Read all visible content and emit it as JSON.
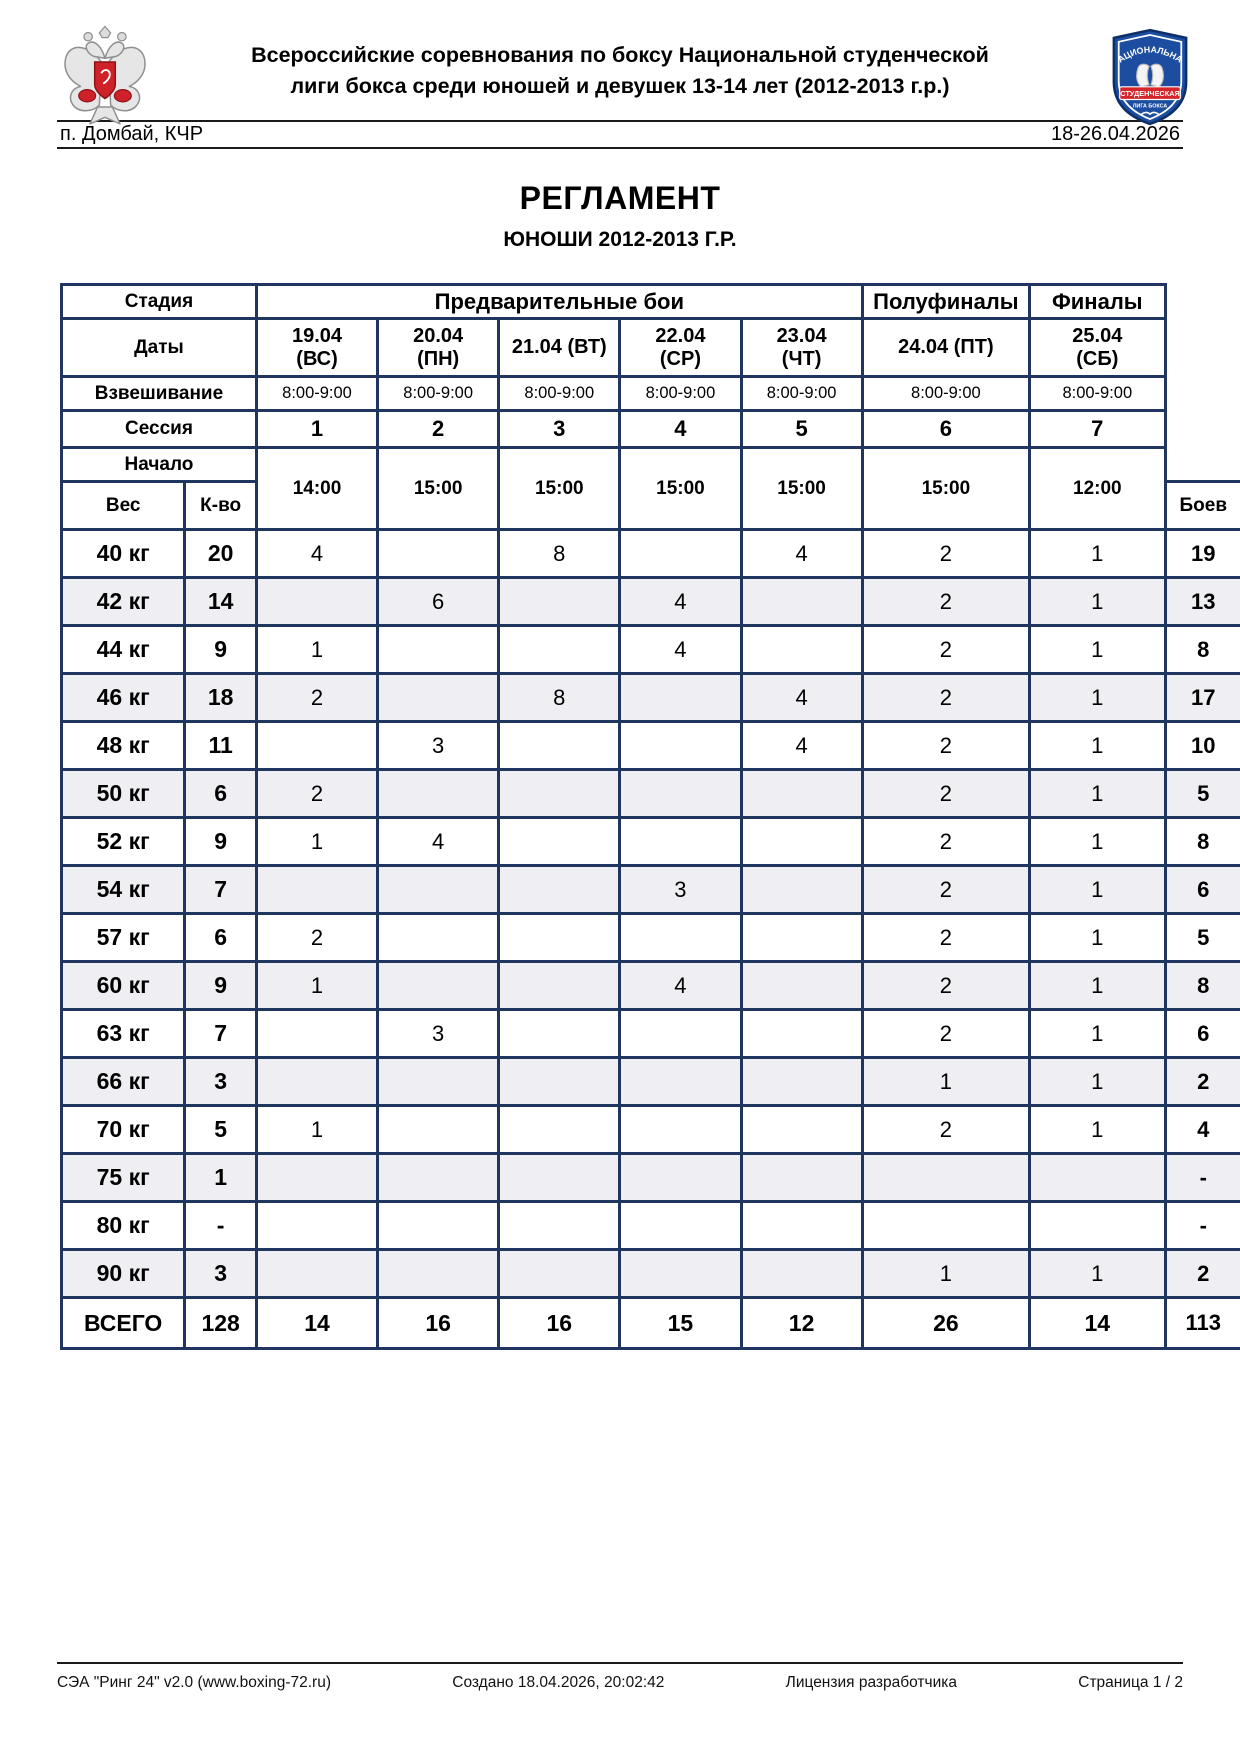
{
  "header": {
    "title_line1": "Всероссийские соревнования по боксу Национальной студенческой",
    "title_line2": "лиги бокса среди юношей и девушек 13-14 лет (2012-2013 г.р.)",
    "location": "п. Домбай, КЧР",
    "dates": "18-26.04.2026",
    "left_logo": "russia-sport-eagle-emblem",
    "right_logo": {
      "top_text": "НАЦИОНАЛЬНАЯ",
      "banner_text": "СТУДЕНЧЕСКАЯ",
      "bottom_text": "ЛИГА БОКСА"
    },
    "colors": {
      "table_border": "#203560",
      "alt_row": "#efeff3",
      "shield_blue": "#1c4da1",
      "banner_red": "#d6262b"
    }
  },
  "main": {
    "title": "РЕГЛАМЕНТ",
    "subtitle": "ЮНОШИ 2012-2013 Г.Р."
  },
  "table": {
    "stage_label": "Стадия",
    "stages": [
      "Предварительные бои",
      "Полуфиналы",
      "Финалы"
    ],
    "dates_label": "Даты",
    "dates": [
      "19.04\n(ВС)",
      "20.04\n(ПН)",
      "21.04 (ВТ)",
      "22.04\n(СР)",
      "23.04\n(ЧТ)",
      "24.04 (ПТ)",
      "25.04\n(СБ)"
    ],
    "weighin_label": "Взвешивание",
    "weighin_times": [
      "8:00-9:00",
      "8:00-9:00",
      "8:00-9:00",
      "8:00-9:00",
      "8:00-9:00",
      "8:00-9:00",
      "8:00-9:00"
    ],
    "session_label": "Сессия",
    "sessions": [
      "1",
      "2",
      "3",
      "4",
      "5",
      "6",
      "7"
    ],
    "start_label": "Начало",
    "start_times": [
      "14:00",
      "15:00",
      "15:00",
      "15:00",
      "15:00",
      "15:00",
      "12:00"
    ],
    "weight_label": "Вес",
    "count_label": "К-во",
    "bouts_label": "Боев",
    "rows": [
      {
        "weight": "40 кг",
        "count": "20",
        "days": [
          "4",
          "",
          "8",
          "",
          "4",
          "2",
          "1"
        ],
        "bouts": "19"
      },
      {
        "weight": "42 кг",
        "count": "14",
        "days": [
          "",
          "6",
          "",
          "4",
          "",
          "2",
          "1"
        ],
        "bouts": "13"
      },
      {
        "weight": "44 кг",
        "count": "9",
        "days": [
          "1",
          "",
          "",
          "4",
          "",
          "2",
          "1"
        ],
        "bouts": "8"
      },
      {
        "weight": "46 кг",
        "count": "18",
        "days": [
          "2",
          "",
          "8",
          "",
          "4",
          "2",
          "1"
        ],
        "bouts": "17"
      },
      {
        "weight": "48 кг",
        "count": "11",
        "days": [
          "",
          "3",
          "",
          "",
          "4",
          "2",
          "1"
        ],
        "bouts": "10"
      },
      {
        "weight": "50 кг",
        "count": "6",
        "days": [
          "2",
          "",
          "",
          "",
          "",
          "2",
          "1"
        ],
        "bouts": "5"
      },
      {
        "weight": "52 кг",
        "count": "9",
        "days": [
          "1",
          "4",
          "",
          "",
          "",
          "2",
          "1"
        ],
        "bouts": "8"
      },
      {
        "weight": "54 кг",
        "count": "7",
        "days": [
          "",
          "",
          "",
          "3",
          "",
          "2",
          "1"
        ],
        "bouts": "6"
      },
      {
        "weight": "57 кг",
        "count": "6",
        "days": [
          "2",
          "",
          "",
          "",
          "",
          "2",
          "1"
        ],
        "bouts": "5"
      },
      {
        "weight": "60 кг",
        "count": "9",
        "days": [
          "1",
          "",
          "",
          "4",
          "",
          "2",
          "1"
        ],
        "bouts": "8"
      },
      {
        "weight": "63 кг",
        "count": "7",
        "days": [
          "",
          "3",
          "",
          "",
          "",
          "2",
          "1"
        ],
        "bouts": "6"
      },
      {
        "weight": "66 кг",
        "count": "3",
        "days": [
          "",
          "",
          "",
          "",
          "",
          "1",
          "1"
        ],
        "bouts": "2"
      },
      {
        "weight": "70 кг",
        "count": "5",
        "days": [
          "1",
          "",
          "",
          "",
          "",
          "2",
          "1"
        ],
        "bouts": "4"
      },
      {
        "weight": "75 кг",
        "count": "1",
        "days": [
          "",
          "",
          "",
          "",
          "",
          "",
          ""
        ],
        "bouts": "-"
      },
      {
        "weight": "80 кг",
        "count": "-",
        "days": [
          "",
          "",
          "",
          "",
          "",
          "",
          ""
        ],
        "bouts": "-"
      },
      {
        "weight": "90 кг",
        "count": "3",
        "days": [
          "",
          "",
          "",
          "",
          "",
          "1",
          "1"
        ],
        "bouts": "2"
      }
    ],
    "total": {
      "label": "ВСЕГО",
      "count": "128",
      "days": [
        "14",
        "16",
        "16",
        "15",
        "12",
        "26",
        "14"
      ],
      "bouts": "113"
    }
  },
  "footer": {
    "app": "СЭА \"Ринг 24\" v2.0 (www.boxing-72.ru)",
    "created": "Создано 18.04.2026, 20:02:42",
    "license": "Лицензия разработчика",
    "page": "Страница 1 / 2"
  }
}
